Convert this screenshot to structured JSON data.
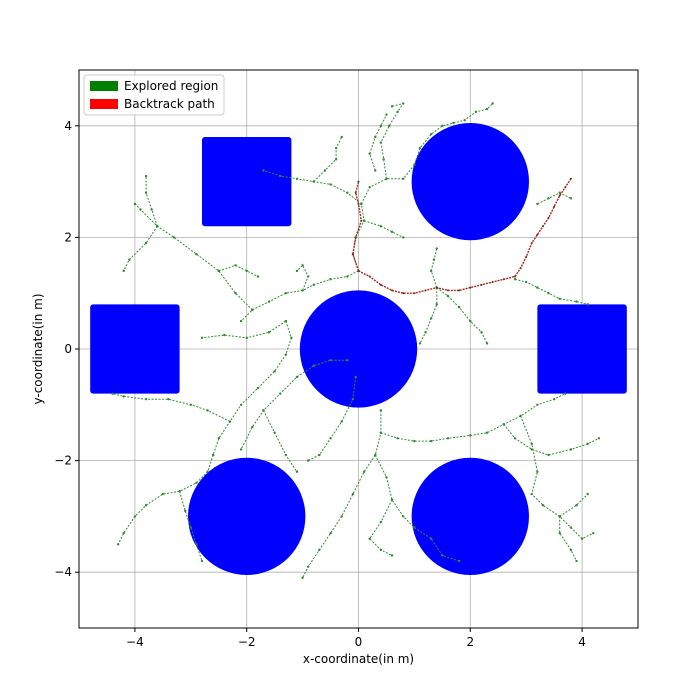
{
  "chart_data": {
    "type": "scatter",
    "xlabel": "x-coordinate(in m)",
    "ylabel": "y-coordinate(in m)",
    "xlim": [
      -5,
      5
    ],
    "ylim": [
      -5,
      5
    ],
    "grid": true,
    "legend_position": "top-left",
    "xticks": [
      -4,
      -2,
      0,
      2,
      4
    ],
    "yticks": [
      -4,
      -2,
      0,
      2,
      4
    ],
    "xtick_labels": [
      "−4",
      "−2",
      "0",
      "2",
      "4"
    ],
    "ytick_labels": [
      "−4",
      "−2",
      "0",
      "2",
      "4"
    ],
    "legend": [
      {
        "label": "Explored region",
        "color": "#008000"
      },
      {
        "label": "Backtrack path",
        "color": "#ff0000"
      }
    ],
    "obstacles": [
      {
        "shape": "circle",
        "center": [
          0,
          0
        ],
        "radius": 1.05
      },
      {
        "shape": "circle",
        "center": [
          2,
          3
        ],
        "radius": 1.05
      },
      {
        "shape": "circle",
        "center": [
          -2,
          -3
        ],
        "radius": 1.05
      },
      {
        "shape": "circle",
        "center": [
          2,
          -3
        ],
        "radius": 1.05
      },
      {
        "shape": "square",
        "center": [
          -2,
          3
        ],
        "size": 1.6
      },
      {
        "shape": "square",
        "center": [
          -4,
          0
        ],
        "size": 1.6
      },
      {
        "shape": "square",
        "center": [
          4,
          0
        ],
        "size": 1.6
      }
    ],
    "obstacle_color": "#0000ff",
    "explored_color": "#2e8b2e",
    "backtrack_color": "#b22222",
    "explored_branches": [
      [
        [
          0,
          1.4
        ],
        [
          -0.2,
          1.3
        ],
        [
          -0.5,
          1.25
        ],
        [
          -0.8,
          1.15
        ],
        [
          -1.0,
          1.05
        ],
        [
          -1.3,
          1.0
        ],
        [
          -1.6,
          0.85
        ],
        [
          -1.9,
          0.7
        ],
        [
          -2.1,
          0.5
        ]
      ],
      [
        [
          -1.9,
          0.7
        ],
        [
          -2.2,
          1.0
        ],
        [
          -2.5,
          1.4
        ],
        [
          -2.9,
          1.7
        ],
        [
          -3.3,
          2.0
        ],
        [
          -3.6,
          2.2
        ],
        [
          -3.9,
          2.5
        ],
        [
          -4.0,
          2.6
        ]
      ],
      [
        [
          -3.6,
          2.2
        ],
        [
          -3.8,
          1.9
        ],
        [
          -4.1,
          1.6
        ],
        [
          -4.2,
          1.4
        ]
      ],
      [
        [
          -3.6,
          2.2
        ],
        [
          -3.7,
          2.5
        ],
        [
          -3.8,
          2.8
        ],
        [
          -3.8,
          3.1
        ]
      ],
      [
        [
          -2.5,
          1.4
        ],
        [
          -2.2,
          1.5
        ],
        [
          -2.0,
          1.4
        ],
        [
          -1.8,
          1.3
        ]
      ],
      [
        [
          -1.0,
          1.05
        ],
        [
          -0.9,
          1.3
        ],
        [
          -1.0,
          1.5
        ],
        [
          -1.1,
          1.4
        ]
      ],
      [
        [
          -1.3,
          0.5
        ],
        [
          -1.2,
          0.2
        ],
        [
          -1.3,
          -0.1
        ],
        [
          -1.5,
          -0.4
        ],
        [
          -1.8,
          -0.7
        ],
        [
          -2.1,
          -1.0
        ],
        [
          -2.3,
          -1.3
        ],
        [
          -2.5,
          -1.6
        ],
        [
          -2.6,
          -1.9
        ]
      ],
      [
        [
          -1.3,
          0.5
        ],
        [
          -1.6,
          0.3
        ],
        [
          -2.0,
          0.2
        ],
        [
          -2.4,
          0.25
        ],
        [
          -2.8,
          0.2
        ]
      ],
      [
        [
          -2.3,
          -1.3
        ],
        [
          -2.7,
          -1.1
        ],
        [
          -3.0,
          -1.0
        ],
        [
          -3.4,
          -0.9
        ],
        [
          -3.8,
          -0.9
        ],
        [
          -4.2,
          -0.85
        ],
        [
          -4.4,
          -0.8
        ]
      ],
      [
        [
          -2.6,
          -1.9
        ],
        [
          -2.7,
          -2.2
        ],
        [
          -2.9,
          -2.4
        ],
        [
          -3.2,
          -2.55
        ],
        [
          -3.5,
          -2.6
        ],
        [
          -3.8,
          -2.8
        ],
        [
          -4.0,
          -3.0
        ],
        [
          -4.2,
          -3.3
        ],
        [
          -4.3,
          -3.5
        ]
      ],
      [
        [
          -3.2,
          -2.55
        ],
        [
          -3.1,
          -2.9
        ],
        [
          -3.0,
          -3.2
        ],
        [
          -2.9,
          -3.5
        ],
        [
          -2.8,
          -3.8
        ]
      ],
      [
        [
          -0.2,
          -0.2
        ],
        [
          -0.5,
          -0.2
        ],
        [
          -0.8,
          -0.3
        ],
        [
          -1.1,
          -0.5
        ],
        [
          -1.4,
          -0.8
        ],
        [
          -1.7,
          -1.1
        ],
        [
          -1.9,
          -1.4
        ],
        [
          -2.1,
          -1.8
        ]
      ],
      [
        [
          -1.7,
          -1.1
        ],
        [
          -1.5,
          -1.5
        ],
        [
          -1.3,
          -1.9
        ],
        [
          -1.1,
          -2.2
        ]
      ],
      [
        [
          -0.05,
          -0.5
        ],
        [
          -0.1,
          -0.9
        ],
        [
          -0.3,
          -1.3
        ],
        [
          -0.5,
          -1.6
        ],
        [
          -0.7,
          -1.9
        ],
        [
          -0.9,
          -2.0
        ]
      ],
      [
        [
          0.4,
          -1.1
        ],
        [
          0.4,
          -1.5
        ],
        [
          0.3,
          -1.9
        ],
        [
          0.1,
          -2.2
        ],
        [
          -0.1,
          -2.6
        ],
        [
          -0.3,
          -3.0
        ],
        [
          -0.5,
          -3.3
        ],
        [
          -0.7,
          -3.6
        ],
        [
          -0.9,
          -3.9
        ],
        [
          -1.0,
          -4.1
        ]
      ],
      [
        [
          0.4,
          -1.5
        ],
        [
          0.7,
          -1.6
        ],
        [
          1.0,
          -1.65
        ],
        [
          1.3,
          -1.65
        ],
        [
          1.6,
          -1.6
        ],
        [
          2.0,
          -1.55
        ],
        [
          2.3,
          -1.5
        ],
        [
          2.6,
          -1.35
        ],
        [
          2.9,
          -1.2
        ],
        [
          3.2,
          -1.0
        ],
        [
          3.5,
          -0.9
        ],
        [
          3.7,
          -0.8
        ]
      ],
      [
        [
          2.6,
          -1.35
        ],
        [
          2.8,
          -1.6
        ],
        [
          3.1,
          -1.8
        ],
        [
          3.4,
          -1.9
        ],
        [
          3.8,
          -1.8
        ],
        [
          4.1,
          -1.7
        ],
        [
          4.3,
          -1.6
        ]
      ],
      [
        [
          0.3,
          -1.9
        ],
        [
          0.5,
          -2.3
        ],
        [
          0.6,
          -2.7
        ],
        [
          0.8,
          -3.0
        ],
        [
          1.0,
          -3.2
        ],
        [
          1.3,
          -3.4
        ],
        [
          1.5,
          -3.7
        ],
        [
          1.8,
          -3.8
        ]
      ],
      [
        [
          0.6,
          -2.7
        ],
        [
          0.4,
          -3.1
        ],
        [
          0.2,
          -3.4
        ],
        [
          0.4,
          -3.6
        ],
        [
          0.6,
          -3.7
        ]
      ],
      [
        [
          2.9,
          -1.2
        ],
        [
          3.1,
          -1.7
        ],
        [
          3.2,
          -2.2
        ],
        [
          3.1,
          -2.6
        ],
        [
          3.3,
          -2.8
        ],
        [
          3.6,
          -3.0
        ],
        [
          3.8,
          -3.2
        ],
        [
          4.0,
          -3.4
        ],
        [
          4.2,
          -3.3
        ]
      ],
      [
        [
          3.6,
          -3.0
        ],
        [
          3.6,
          -3.3
        ],
        [
          3.8,
          -3.6
        ],
        [
          3.9,
          -3.8
        ]
      ],
      [
        [
          3.6,
          -3.0
        ],
        [
          3.9,
          -2.8
        ],
        [
          4.1,
          -2.6
        ]
      ],
      [
        [
          0,
          1.4
        ],
        [
          -0.1,
          1.7
        ],
        [
          -0.05,
          2.0
        ],
        [
          0.1,
          2.3
        ],
        [
          0.05,
          2.6
        ],
        [
          -0.2,
          2.8
        ],
        [
          -0.5,
          2.95
        ],
        [
          -0.8,
          3.0
        ],
        [
          -1.1,
          3.05
        ],
        [
          -1.4,
          3.1
        ],
        [
          -1.7,
          3.2
        ]
      ],
      [
        [
          -0.8,
          3.0
        ],
        [
          -0.6,
          3.2
        ],
        [
          -0.4,
          3.4
        ],
        [
          -0.4,
          3.6
        ],
        [
          -0.3,
          3.8
        ]
      ],
      [
        [
          0.05,
          2.6
        ],
        [
          0.2,
          2.9
        ],
        [
          0.5,
          3.05
        ],
        [
          0.8,
          3.05
        ],
        [
          1.0,
          3.3
        ],
        [
          1.1,
          3.6
        ],
        [
          1.3,
          3.85
        ],
        [
          1.5,
          4.0
        ],
        [
          1.7,
          4.05
        ],
        [
          1.9,
          4.1
        ],
        [
          2.1,
          4.25
        ],
        [
          2.3,
          4.3
        ],
        [
          2.4,
          4.4
        ]
      ],
      [
        [
          0.5,
          3.05
        ],
        [
          0.45,
          3.4
        ],
        [
          0.4,
          3.7
        ],
        [
          0.55,
          4.0
        ],
        [
          0.7,
          4.25
        ],
        [
          0.8,
          4.4
        ],
        [
          0.6,
          4.35
        ]
      ],
      [
        [
          0.3,
          3.2
        ],
        [
          0.2,
          3.5
        ],
        [
          0.3,
          3.8
        ],
        [
          0.4,
          4.0
        ],
        [
          0.5,
          4.2
        ]
      ],
      [
        [
          0.1,
          2.3
        ],
        [
          0.4,
          2.2
        ],
        [
          0.6,
          2.1
        ],
        [
          0.8,
          2.0
        ]
      ],
      [
        [
          1.4,
          1.1
        ],
        [
          1.6,
          0.95
        ],
        [
          1.8,
          0.75
        ],
        [
          2.0,
          0.5
        ],
        [
          2.2,
          0.3
        ],
        [
          2.3,
          0.1
        ]
      ],
      [
        [
          1.4,
          1.1
        ],
        [
          1.4,
          0.8
        ],
        [
          1.3,
          0.55
        ],
        [
          1.2,
          0.3
        ],
        [
          1.1,
          0.1
        ]
      ],
      [
        [
          2.8,
          1.25
        ],
        [
          3.0,
          1.2
        ],
        [
          3.2,
          1.1
        ],
        [
          3.4,
          1.0
        ],
        [
          3.6,
          0.9
        ],
        [
          3.9,
          0.85
        ],
        [
          4.1,
          0.8
        ]
      ],
      [
        [
          3.2,
          2.6
        ],
        [
          3.4,
          2.7
        ],
        [
          3.6,
          2.8
        ],
        [
          3.8,
          2.7
        ]
      ],
      [
        [
          1.4,
          1.1
        ],
        [
          1.3,
          1.4
        ],
        [
          1.35,
          1.6
        ],
        [
          1.4,
          1.8
        ]
      ]
    ],
    "backtrack_path": [
      [
        0.0,
        1.4
      ],
      [
        0.2,
        1.3
      ],
      [
        0.4,
        1.15
      ],
      [
        0.6,
        1.05
      ],
      [
        0.8,
        1.0
      ],
      [
        1.0,
        1.0
      ],
      [
        1.2,
        1.05
      ],
      [
        1.4,
        1.1
      ],
      [
        1.6,
        1.05
      ],
      [
        1.8,
        1.05
      ],
      [
        2.0,
        1.1
      ],
      [
        2.2,
        1.15
      ],
      [
        2.4,
        1.2
      ],
      [
        2.6,
        1.25
      ],
      [
        2.8,
        1.3
      ],
      [
        2.9,
        1.45
      ],
      [
        3.0,
        1.65
      ],
      [
        3.1,
        1.9
      ],
      [
        3.2,
        2.05
      ],
      [
        3.3,
        2.2
      ],
      [
        3.4,
        2.35
      ],
      [
        3.5,
        2.55
      ],
      [
        3.6,
        2.75
      ],
      [
        3.7,
        2.9
      ],
      [
        3.8,
        3.05
      ]
    ],
    "backtrack_start_branch": [
      [
        0.0,
        1.4
      ],
      [
        -0.1,
        1.7
      ],
      [
        -0.05,
        2.0
      ],
      [
        0.05,
        2.3
      ],
      [
        0.0,
        2.6
      ],
      [
        -0.05,
        2.8
      ],
      [
        0.0,
        3.0
      ]
    ]
  }
}
